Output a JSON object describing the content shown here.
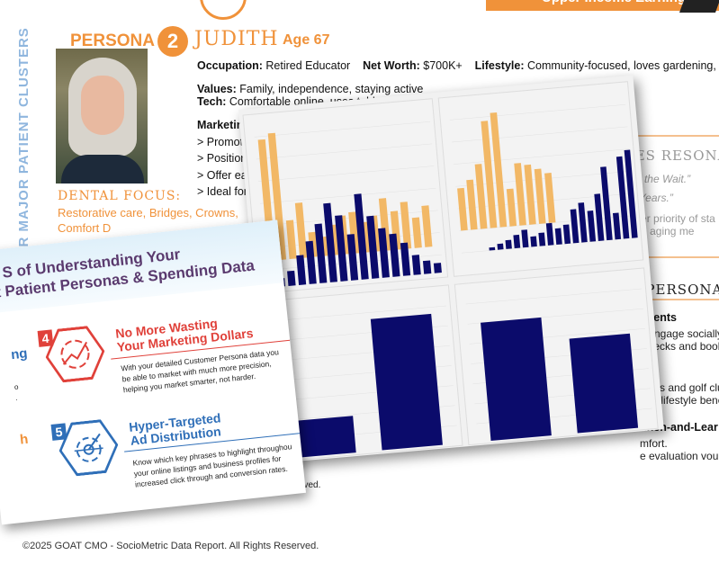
{
  "background_doc": {
    "banner_title": "Upper Income Earning Grandparents",
    "sidebar_label": "OUR MAJOR PATIENT CLUSTERS",
    "persona_label": "PERSONA",
    "persona_number": "2",
    "persona_name": "JUDITH",
    "persona_age": "Age 67",
    "occupation_label": "Occupation:",
    "occupation": "Retired Educator",
    "networth_label": "Net Worth:",
    "networth": "$700K+",
    "lifestyle_label": "Lifestyle:",
    "lifestyle": "Community-focused, loves gardening, tenni",
    "values_label": "Values:",
    "values": "Family,  independence, staying active",
    "tech_label": "Tech:",
    "tech": "Comfortable online, uses tablet for booking and reading",
    "marketing_tips_label": "Marketing Tips:",
    "marketing_tips": [
      "> Promote implants, crowns, and cosmetic upgrades",
      "> Position services as part of healthy aging",
      "> Offer early-day appointments and flexible payments",
      "> Ideal for referral and “lifetime care” loyalty campaigns"
    ],
    "dental_focus_label": "DENTAL FOCUS:",
    "dental_focus": "Restorative care, Bridges, Crowns,",
    "dental_focus_2": "Comfort D",
    "messages_heading": "WHAT MESSAGES RESONATE:",
    "messages": [
      "“Confident Smiles Without the Wait.”",
      "“Healthy Smiles, Happier Years.”"
    ],
    "why_it_works": "Why it works: Speaks to her priority of sta",
    "why_it_works_2": "independence and graceful aging me",
    "persona_section_heading": "REACH THIS PERSONA",
    "channels": [
      {
        "title": "Events",
        "lines": [
          "y engage socially.",
          "Checks and book c"
        ]
      },
      {
        "title": "ns",
        "lines": [
          "zines and golf club",
          "and lifestyle bene"
        ]
      },
      {
        "title": "unch-and-Lear",
        "lines": [
          "mfort.",
          "e evaluation vou"
        ]
      }
    ],
    "reserved": "eserved.",
    "footer": "©2025 GOAT CMO - SocioMetric Data Report. All Rights Reserved."
  },
  "infographic": {
    "title_line1": "S of Understanding Your",
    "title_line2": "nt Patient Personas & Spending Data",
    "left_fragments": [
      "ng",
      "o",
      ".",
      "h"
    ],
    "features": [
      {
        "number": "4",
        "title_line1": "No More Wasting",
        "title_line2": "Your Marketing Dollars",
        "body": [
          "With your detailed Customer Persona data you",
          "be able to market with much more precision,",
          "helping you market smarter, not harder."
        ],
        "color": "#e0413a",
        "icon": "chart-target-icon"
      },
      {
        "number": "5",
        "title_line1": "Hyper-Targeted",
        "title_line2": "Ad Distribution",
        "body": [
          "Know which key phrases to highlight throughou",
          "your online listings and business profiles for",
          "increased click through and conversion rates."
        ],
        "color": "#2f6fb8",
        "icon": "arrow-target-icon"
      }
    ]
  },
  "colors": {
    "orange": "#f0923a",
    "navy": "#0b0b6b",
    "bar_orange": "#f2b866",
    "purple": "#5a3a6e",
    "red": "#e0413a",
    "blue": "#2f6fb8"
  },
  "chart_data": [
    {
      "type": "bar",
      "series": [
        {
          "values": [
            88,
            92,
            28,
            40,
            18,
            14,
            22,
            28,
            30,
            22,
            26,
            38,
            28,
            34,
            22,
            30
          ]
        },
        {
          "values": [
            5,
            9,
            18,
            26,
            36,
            48,
            40,
            28,
            52,
            38,
            30,
            26,
            20,
            12,
            8,
            6
          ]
        }
      ]
    },
    {
      "type": "bar",
      "series": [
        {
          "values": [
            34,
            40,
            52,
            86,
            92,
            30,
            50,
            48,
            44,
            40
          ]
        },
        {
          "values": [
            2,
            4,
            6,
            9,
            12,
            7,
            9,
            15,
            11,
            13,
            23,
            27,
            21,
            32,
            50,
            18,
            56,
            60
          ]
        }
      ]
    },
    {
      "type": "bar",
      "values": [
        28,
        100
      ]
    },
    {
      "type": "bar",
      "values": [
        90,
        72
      ]
    }
  ]
}
